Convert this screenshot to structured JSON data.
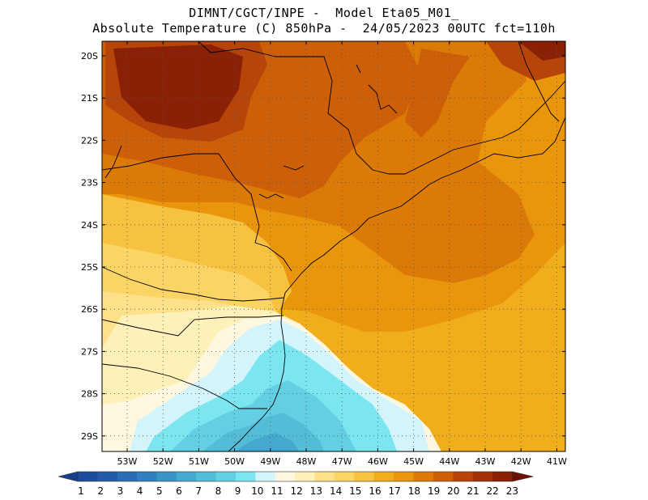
{
  "title": {
    "line1": "DIMNT/CGCT/INPE -  Model Eta05_M01_",
    "line2": "Absolute Temperature (C) 850hPa -  24/05/2023 00UTC fct=110h"
  },
  "map": {
    "lon_range": [
      -53.7,
      -40.6
    ],
    "lat_range": [
      -29.4,
      -19.9
    ],
    "lat_labels": [
      "20S",
      "21S",
      "22S",
      "23S",
      "24S",
      "25S",
      "26S",
      "27S",
      "28S",
      "29S"
    ],
    "lon_labels": [
      "53W",
      "52W",
      "51W",
      "50W",
      "49W",
      "48W",
      "47W",
      "46W",
      "45W",
      "44W",
      "43W",
      "42W",
      "41W"
    ],
    "field_bands_c": [
      "<11",
      "11-12",
      "12-13",
      "13-14",
      "14-15",
      "15-16",
      "16-17",
      "17-18",
      "18-19",
      "19-20",
      "20-21",
      ">21"
    ]
  },
  "colorbar": {
    "labels": [
      "1",
      "2",
      "3",
      "4",
      "5",
      "6",
      "7",
      "8",
      "9",
      "10",
      "11",
      "12",
      "13",
      "14",
      "15",
      "16",
      "17",
      "18",
      "19",
      "20",
      "21",
      "22",
      "23"
    ],
    "colors": [
      "#1a3e8e",
      "#1e4a9a",
      "#245aa6",
      "#2b6cb2",
      "#327fbe",
      "#3a94c6",
      "#45a8cf",
      "#53bcd7",
      "#62d0e2",
      "#7ce6f0",
      "#d4f4fb",
      "#fff7df",
      "#fdf0b8",
      "#fce18a",
      "#fad464",
      "#f6c240",
      "#f0ad1c",
      "#e9960c",
      "#dc7a08",
      "#cc5f08",
      "#b74408",
      "#a23308",
      "#8a2006",
      "#6e1000"
    ]
  }
}
